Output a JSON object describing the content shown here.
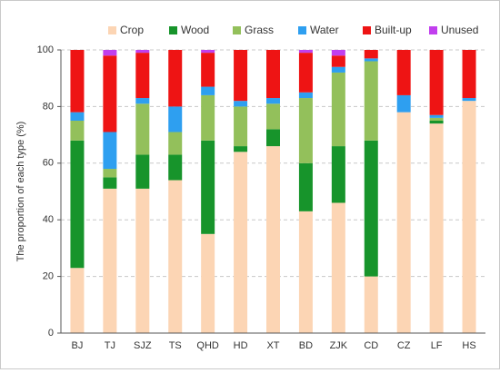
{
  "chart_data": {
    "type": "bar",
    "stacked": true,
    "title": "",
    "xlabel": "",
    "ylabel": "The proportion of each type (%)",
    "ylim": [
      0,
      100
    ],
    "yticks": [
      0,
      20,
      40,
      60,
      80,
      100
    ],
    "grid": "dashed-horizontal",
    "legend": "top",
    "categories": [
      "BJ",
      "TJ",
      "SJZ",
      "TS",
      "QHD",
      "HD",
      "XT",
      "BD",
      "ZJK",
      "CD",
      "CZ",
      "LF",
      "HS"
    ],
    "series": [
      {
        "name": "Crop",
        "color": "#fcd5b4",
        "values": [
          23,
          51,
          51,
          54,
          35,
          64,
          66,
          43,
          46,
          20,
          78,
          74,
          82
        ]
      },
      {
        "name": "Wood",
        "color": "#17942b",
        "values": [
          45,
          4,
          12,
          9,
          33,
          2,
          6,
          17,
          20,
          48,
          0,
          1,
          0
        ]
      },
      {
        "name": "Grass",
        "color": "#93c05b",
        "values": [
          7,
          3,
          18,
          8,
          16,
          14,
          9,
          23,
          26,
          28,
          0,
          1,
          0
        ]
      },
      {
        "name": "Water",
        "color": "#2e9ff0",
        "values": [
          3,
          13,
          2,
          9,
          3,
          2,
          2,
          2,
          2,
          1,
          6,
          1,
          1
        ]
      },
      {
        "name": "Built-up",
        "color": "#ee1414",
        "values": [
          22,
          27,
          16,
          20,
          12,
          18,
          17,
          14,
          4,
          3,
          16,
          23,
          17
        ]
      },
      {
        "name": "Unused",
        "color": "#c13fee",
        "values": [
          0,
          2,
          1,
          0,
          1,
          0,
          0,
          1,
          2,
          0,
          0,
          0,
          0
        ]
      }
    ]
  }
}
